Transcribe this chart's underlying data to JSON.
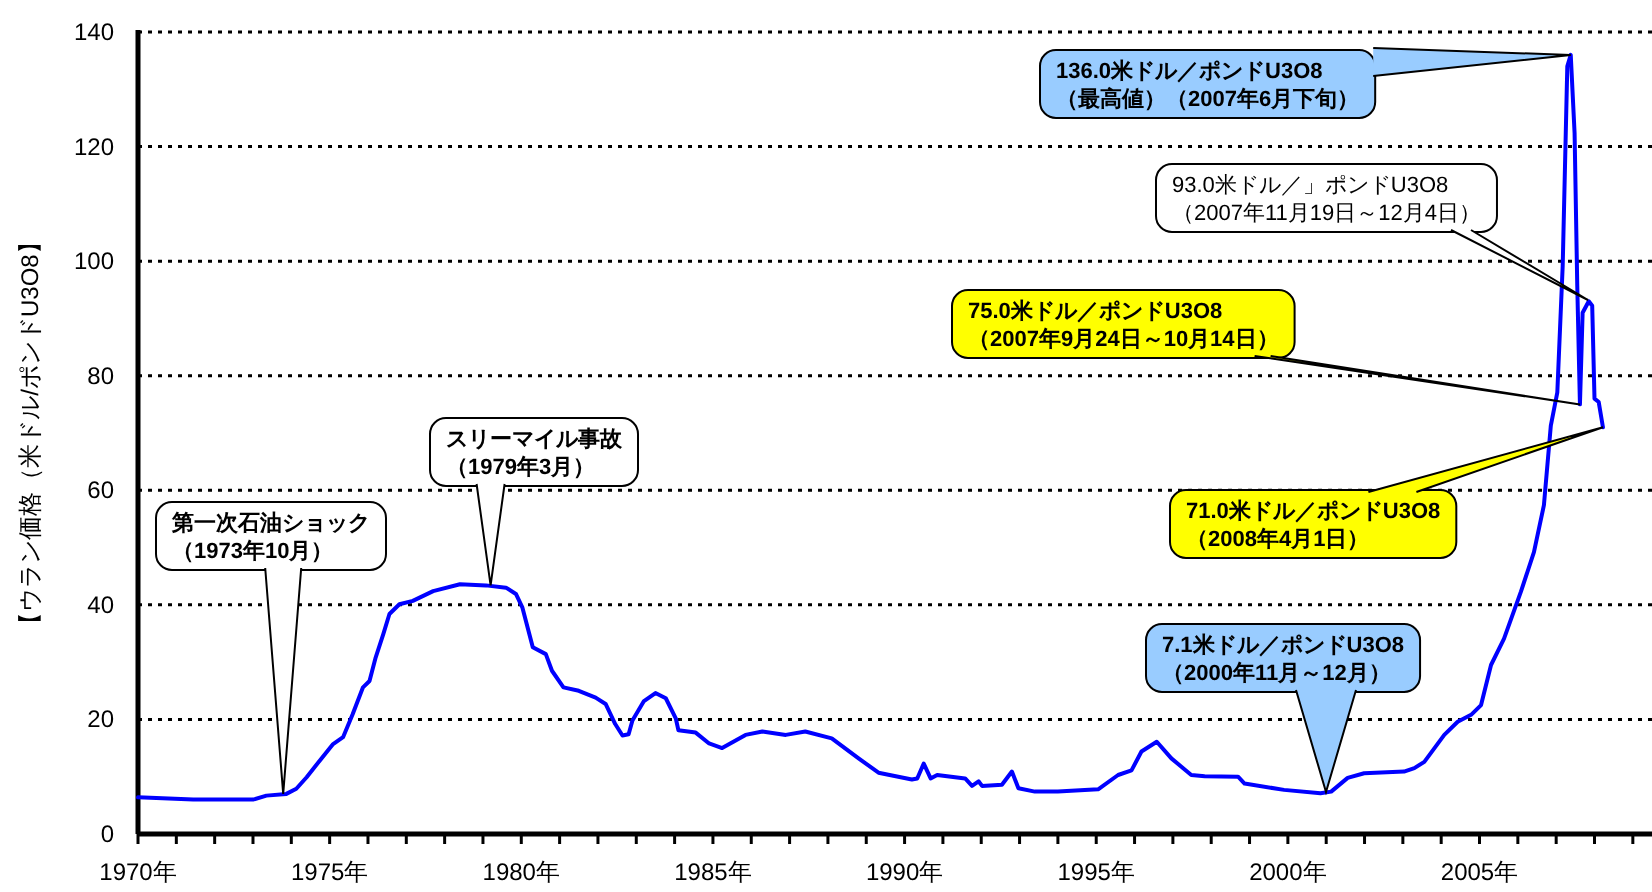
{
  "chart_data": {
    "type": "line",
    "ylabel": "【ウラン価格（米ドル/ポンドU3O8】",
    "x": [
      1970,
      1971.44,
      1973.0,
      1973.35,
      1973.87,
      1974.13,
      1974.4,
      1974.74,
      1975.09,
      1975.35,
      1975.6,
      1975.87,
      1976.04,
      1976.2,
      1976.4,
      1976.56,
      1976.82,
      1977.17,
      1977.7,
      1978.4,
      1979.08,
      1979.6,
      1979.86,
      1980.03,
      1980.3,
      1980.64,
      1980.8,
      1981.1,
      1981.5,
      1981.94,
      1982.2,
      1982.45,
      1982.64,
      1982.8,
      1982.9,
      1983.2,
      1983.5,
      1983.77,
      1984.03,
      1984.1,
      1984.55,
      1984.9,
      1985.24,
      1985.85,
      1986.29,
      1986.9,
      1987.41,
      1988.1,
      1988.8,
      1989.32,
      1990.19,
      1990.33,
      1990.5,
      1990.68,
      1990.85,
      1991.58,
      1991.76,
      1991.93,
      1992.02,
      1992.54,
      1992.8,
      1992.97,
      1993.4,
      1994.0,
      1995.05,
      1995.57,
      1995.92,
      1996.18,
      1996.58,
      1996.96,
      1997.48,
      1997.83,
      1998.7,
      1998.87,
      1999.9,
      2000.85,
      2001.13,
      2001.56,
      2001.99,
      2003.03,
      2003.3,
      2003.56,
      2004.08,
      2004.43,
      2004.78,
      2005.04,
      2005.3,
      2005.64,
      2006.08,
      2006.42,
      2006.68,
      2006.86,
      2007.03,
      2007.17,
      2007.29,
      2007.38,
      2007.48,
      2007.55,
      2007.62,
      2007.69,
      2007.85,
      2007.94,
      2008.0,
      2008.11,
      2008.22
    ],
    "series": [
      {
        "color": "#0000ff",
        "values": [
          6.4,
          6.0,
          6.0,
          6.7,
          7.0,
          7.9,
          9.9,
          12.8,
          15.7,
          16.9,
          20.9,
          25.6,
          26.7,
          30.8,
          34.9,
          38.4,
          40.1,
          40.7,
          42.4,
          43.6,
          43.4,
          43.0,
          41.9,
          39.5,
          32.6,
          31.4,
          28.5,
          25.6,
          25.0,
          23.8,
          22.7,
          19.2,
          17.2,
          17.4,
          19.8,
          23.2,
          24.6,
          23.7,
          20.2,
          18.1,
          17.7,
          15.8,
          15.0,
          17.3,
          17.9,
          17.3,
          17.9,
          16.7,
          13.2,
          10.7,
          9.5,
          9.7,
          12.3,
          9.7,
          10.3,
          9.7,
          8.4,
          9.2,
          8.4,
          8.6,
          10.9,
          8.0,
          7.4,
          7.4,
          7.8,
          10.3,
          11.1,
          14.4,
          16.1,
          13.2,
          10.3,
          10.1,
          10.0,
          8.8,
          7.7,
          7.1,
          7.4,
          9.8,
          10.6,
          10.9,
          11.5,
          12.6,
          17.3,
          19.6,
          20.8,
          22.5,
          29.5,
          34.1,
          42.3,
          49.2,
          57.4,
          71.3,
          77.1,
          99.2,
          134,
          136.0,
          122.4,
          95.7,
          75.0,
          91,
          93.0,
          92.2,
          76,
          75.4,
          71.0
        ]
      }
    ],
    "xlim": [
      1970,
      2009.5
    ],
    "xticks": [
      {
        "value": 1970,
        "label": "1970年"
      },
      {
        "value": 1971,
        "label": null
      },
      {
        "value": 1972,
        "label": null
      },
      {
        "value": 1973,
        "label": null
      },
      {
        "value": 1974,
        "label": null
      },
      {
        "value": 1975,
        "label": "1975年"
      },
      {
        "value": 1976,
        "label": null
      },
      {
        "value": 1977,
        "label": null
      },
      {
        "value": 1978,
        "label": null
      },
      {
        "value": 1979,
        "label": null
      },
      {
        "value": 1980,
        "label": "1980年"
      },
      {
        "value": 1981,
        "label": null
      },
      {
        "value": 1982,
        "label": null
      },
      {
        "value": 1983,
        "label": null
      },
      {
        "value": 1984,
        "label": null
      },
      {
        "value": 1985,
        "label": "1985年"
      },
      {
        "value": 1986,
        "label": null
      },
      {
        "value": 1987,
        "label": null
      },
      {
        "value": 1988,
        "label": null
      },
      {
        "value": 1989,
        "label": null
      },
      {
        "value": 1990,
        "label": "1990年"
      },
      {
        "value": 1991,
        "label": null
      },
      {
        "value": 1992,
        "label": null
      },
      {
        "value": 1993,
        "label": null
      },
      {
        "value": 1994,
        "label": null
      },
      {
        "value": 1995,
        "label": "1995年"
      },
      {
        "value": 1996,
        "label": null
      },
      {
        "value": 1997,
        "label": null
      },
      {
        "value": 1998,
        "label": null
      },
      {
        "value": 1999,
        "label": null
      },
      {
        "value": 2000,
        "label": "2000年"
      },
      {
        "value": 2001,
        "label": null
      },
      {
        "value": 2002,
        "label": null
      },
      {
        "value": 2003,
        "label": null
      },
      {
        "value": 2004,
        "label": null
      },
      {
        "value": 2005,
        "label": "2005年"
      },
      {
        "value": 2006,
        "label": null
      },
      {
        "value": 2007,
        "label": null
      },
      {
        "value": 2008,
        "label": null
      },
      {
        "value": 2009,
        "label": null
      }
    ],
    "ylim": [
      0,
      140
    ],
    "yticks": [
      0,
      20,
      40,
      60,
      80,
      100,
      120,
      140
    ],
    "grid": "y",
    "marker": "none",
    "line_style": "solid",
    "annotations": [
      {
        "text": "第一次石油ショック（1973年10月）",
        "x": 1973.79,
        "y": 7.0
      },
      {
        "text": "スリーマイル事故（1979年3月）",
        "x": 1979.2,
        "y": 43.4
      },
      {
        "text": "136.0米ドル／ポンドU3O8（最高値）（2007年6月下旬）",
        "x": 2007.38,
        "y": 136.0
      },
      "93.0米ドル／」ポンドU3O8（2007年11月19日～12月4日）",
      {
        "text": "75.0米ドル／ポンドU3O8（2007年9月24日～10月14日）",
        "x": 2007.62,
        "y": 75.0
      },
      {
        "text": "71.0米ドル／ポンドU3O8（2008年4月1日）",
        "x": 2008.22,
        "y": 71.0
      },
      "7.1米ドル／ポンドU3O8（2000年11月～12月）"
    ]
  }
}
